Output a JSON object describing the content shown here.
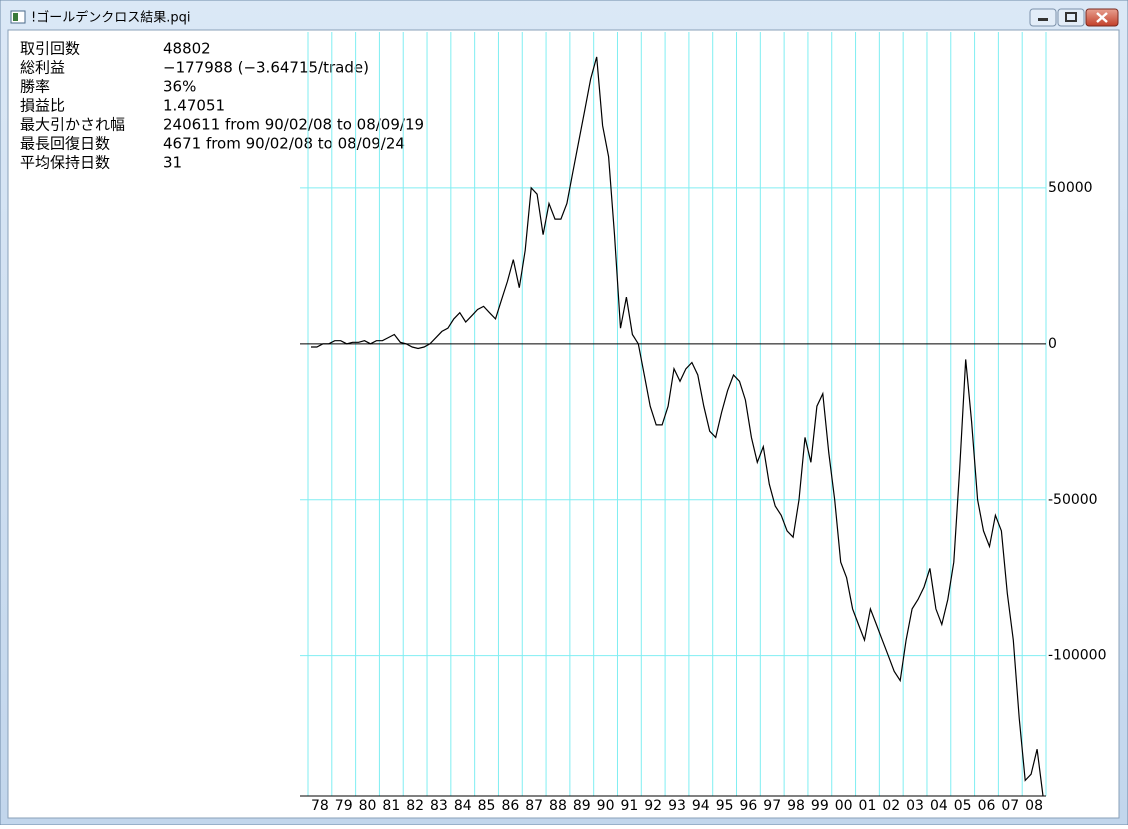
{
  "window": {
    "title": "!ゴールデンクロス結果.pqi"
  },
  "stats": [
    [
      "取引回数",
      "48802"
    ],
    [
      "総利益",
      "−177988 (−3.64715/trade)"
    ],
    [
      "勝率",
      "36%"
    ],
    [
      "損益比",
      "1.47051"
    ],
    [
      "最大引かされ幅",
      "240611 from 90/02/08 to 08/09/19"
    ],
    [
      "最長回復日数",
      "4671 from 90/02/08 to 08/09/24"
    ],
    [
      "平均保持日数",
      "31"
    ]
  ],
  "chart_data": {
    "type": "line",
    "color": "#000000",
    "grid": true,
    "grid_color": "#80eef2",
    "categories": [
      null,
      null,
      "78",
      null,
      null,
      null,
      "79",
      null,
      null,
      null,
      "80",
      null,
      null,
      null,
      "81",
      null,
      null,
      null,
      "82",
      null,
      null,
      null,
      "83",
      null,
      null,
      null,
      "84",
      null,
      null,
      null,
      "85",
      null,
      null,
      null,
      "86",
      null,
      null,
      null,
      "87",
      null,
      null,
      null,
      "88",
      null,
      null,
      null,
      "89",
      null,
      null,
      null,
      "90",
      null,
      null,
      null,
      "91",
      null,
      null,
      null,
      "92",
      null,
      null,
      null,
      "93",
      null,
      null,
      null,
      "94",
      null,
      null,
      null,
      "95",
      null,
      null,
      null,
      "96",
      null,
      null,
      null,
      "97",
      null,
      null,
      null,
      "98",
      null,
      null,
      null,
      "99",
      null,
      null,
      null,
      "00",
      null,
      null,
      null,
      "01",
      null,
      null,
      null,
      "02",
      null,
      null,
      null,
      "03",
      null,
      null,
      null,
      "04",
      null,
      null,
      null,
      "05",
      null,
      null,
      null,
      "06",
      null,
      null,
      null,
      "07",
      null,
      null,
      null,
      "08",
      null
    ],
    "values": [
      -1000,
      -1000,
      0,
      0,
      1000,
      1000,
      0,
      500,
      500,
      1000,
      0,
      1000,
      1000,
      2000,
      3000,
      500,
      0,
      -1000,
      -1500,
      -1000,
      0,
      2000,
      4000,
      5000,
      8000,
      10000,
      7000,
      9000,
      11000,
      12000,
      10000,
      8000,
      14000,
      20000,
      27000,
      18000,
      30000,
      50000,
      48000,
      35000,
      45000,
      40000,
      40000,
      45000,
      55000,
      65000,
      75000,
      85000,
      92000,
      70000,
      60000,
      35000,
      5000,
      15000,
      3000,
      0,
      -10000,
      -20000,
      -26000,
      -26000,
      -20000,
      -8000,
      -12000,
      -8000,
      -6000,
      -10000,
      -20000,
      -28000,
      -30000,
      -22000,
      -15000,
      -10000,
      -12000,
      -18000,
      -30000,
      -38000,
      -33000,
      -45000,
      -52000,
      -55000,
      -60000,
      -62000,
      -50000,
      -30000,
      -38000,
      -20000,
      -16000,
      -35000,
      -50000,
      -70000,
      -75000,
      -85000,
      -90000,
      -95000,
      -85000,
      -90000,
      -95000,
      -100000,
      -105000,
      -108000,
      -95000,
      -85000,
      -82000,
      -78000,
      -72000,
      -85000,
      -90000,
      -82000,
      -70000,
      -40000,
      -5000,
      -25000,
      -50000,
      -60000,
      -65000,
      -55000,
      -60000,
      -80000,
      -95000,
      -120000,
      -140000,
      -138000,
      -130000,
      -145000
    ],
    "ylim": [
      -145000,
      100000
    ],
    "yticks": [
      -100000,
      -50000,
      0,
      50000
    ]
  }
}
